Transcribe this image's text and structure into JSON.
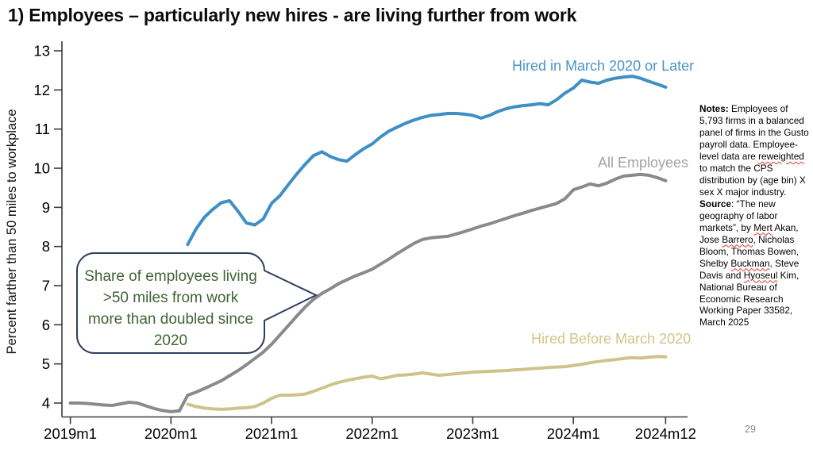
{
  "slide": {
    "title": "1) Employees – particularly new hires - are living further from work"
  },
  "page_number": "29",
  "callout": {
    "text": "Share of employees living >50 miles from work more than doubled since 2020",
    "text_color": "#426336",
    "border_color": "#2e3f5e"
  },
  "notes": {
    "segments": [
      {
        "text": "Notes:",
        "bold": true
      },
      {
        "text": " Employees of 5,793 firms in a balanced panel of firms in the Gusto payroll data. Employee-level data are "
      },
      {
        "text": "reweighted",
        "squiggle": true
      },
      {
        "text": " to match the CPS distribution by (age bin) X sex X major industry. "
      },
      {
        "text": "Source",
        "bold": true
      },
      {
        "text": ": “The new geography of labor markets”, by "
      },
      {
        "text": "Mert",
        "squiggle": true
      },
      {
        "text": " Akan, Jose "
      },
      {
        "text": "Barrero",
        "squiggle": true
      },
      {
        "text": ", Nicholas Bloom, Thomas Bowen, Shelby "
      },
      {
        "text": "Buckman",
        "squiggle": true
      },
      {
        "text": ", Steve Davis and "
      },
      {
        "text": "Hyoseul",
        "squiggle": true
      },
      {
        "text": " Kim, National Bureau of Economic Research Working Paper 33582, March 2025"
      }
    ]
  },
  "chart_data": {
    "type": "line",
    "title": "",
    "xlabel": "",
    "ylabel": "Percent farther than 50 miles to workplace",
    "x_unit": "months since 2019m1",
    "xlim": [
      "2019m1",
      "2024m12"
    ],
    "ylim": [
      4,
      13
    ],
    "grid": false,
    "legend_position": "direct-labels-on-lines",
    "yticks": [
      4,
      5,
      6,
      7,
      8,
      9,
      10,
      11,
      12,
      13
    ],
    "xticks": [
      {
        "pos": 0,
        "label": "2019m1"
      },
      {
        "pos": 12,
        "label": "2020m1"
      },
      {
        "pos": 24,
        "label": "2021m1"
      },
      {
        "pos": 36,
        "label": "2022m1"
      },
      {
        "pos": 48,
        "label": "2023m1"
      },
      {
        "pos": 60,
        "label": "2024m1"
      },
      {
        "pos": 71,
        "label": "2024m12"
      }
    ],
    "series": [
      {
        "id": "all-employees",
        "label": "All Employees",
        "color": "#8a8a8a",
        "label_color": "#a3a3a3",
        "start": 0,
        "values": [
          4.0,
          4.0,
          3.99,
          3.97,
          3.95,
          3.94,
          3.98,
          4.02,
          4.0,
          3.93,
          3.86,
          3.81,
          3.78,
          3.8,
          4.2,
          4.28,
          4.37,
          4.47,
          4.57,
          4.7,
          4.83,
          4.98,
          5.14,
          5.3,
          5.5,
          5.74,
          5.98,
          6.22,
          6.45,
          6.65,
          6.8,
          6.92,
          7.05,
          7.15,
          7.25,
          7.33,
          7.42,
          7.55,
          7.68,
          7.82,
          7.95,
          8.08,
          8.18,
          8.22,
          8.24,
          8.26,
          8.32,
          8.38,
          8.45,
          8.52,
          8.58,
          8.65,
          8.72,
          8.79,
          8.85,
          8.92,
          8.98,
          9.04,
          9.1,
          9.22,
          9.45,
          9.52,
          9.6,
          9.55,
          9.62,
          9.72,
          9.8,
          9.82,
          9.84,
          9.82,
          9.76,
          9.68
        ]
      },
      {
        "id": "hired-before-march-2020",
        "label": "Hired Before March 2020",
        "color": "#cfc38b",
        "label_color": "#d3c486",
        "start": 14,
        "values": [
          3.97,
          3.91,
          3.87,
          3.85,
          3.84,
          3.85,
          3.87,
          3.88,
          3.91,
          4.0,
          4.12,
          4.2,
          4.2,
          4.21,
          4.23,
          4.3,
          4.38,
          4.46,
          4.53,
          4.58,
          4.62,
          4.66,
          4.69,
          4.62,
          4.66,
          4.71,
          4.72,
          4.74,
          4.77,
          4.74,
          4.71,
          4.73,
          4.75,
          4.77,
          4.79,
          4.8,
          4.81,
          4.82,
          4.83,
          4.85,
          4.86,
          4.88,
          4.89,
          4.91,
          4.92,
          4.93,
          4.96,
          4.99,
          5.03,
          5.06,
          5.09,
          5.11,
          5.14,
          5.16,
          5.15,
          5.17,
          5.19,
          5.18
        ]
      },
      {
        "id": "hired-in-march-2020-or-later",
        "label": "Hired in March 2020 or Later",
        "color": "#3f8fc5",
        "label_color": "#4a94c7",
        "start": 14,
        "values": [
          8.05,
          8.45,
          8.75,
          8.95,
          9.12,
          9.17,
          8.9,
          8.6,
          8.55,
          8.7,
          9.1,
          9.3,
          9.58,
          9.85,
          10.1,
          10.32,
          10.42,
          10.3,
          10.22,
          10.18,
          10.35,
          10.5,
          10.62,
          10.8,
          10.95,
          11.05,
          11.15,
          11.23,
          11.3,
          11.35,
          11.37,
          11.4,
          11.4,
          11.38,
          11.35,
          11.28,
          11.35,
          11.45,
          11.52,
          11.57,
          11.6,
          11.62,
          11.65,
          11.62,
          11.75,
          11.92,
          12.05,
          12.25,
          12.2,
          12.17,
          12.25,
          12.3,
          12.33,
          12.35,
          12.3,
          12.22,
          12.15,
          12.07
        ]
      }
    ]
  }
}
